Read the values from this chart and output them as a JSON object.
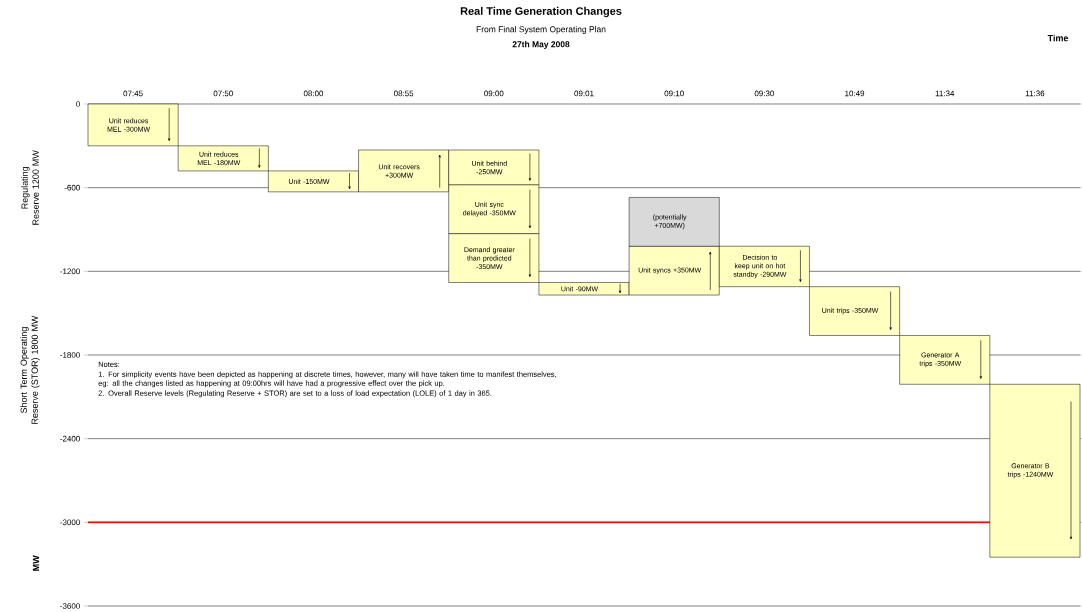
{
  "chart_data": {
    "type": "bar",
    "title": "Real Time Generation Changes",
    "subtitle": "From Final System Operating Plan",
    "ylabel": "MW",
    "categories": [
      "07:45",
      "07:50",
      "08:00",
      "08:55",
      "09:00",
      "09:01",
      "09:10",
      "09:30",
      "10:49",
      "11:34",
      "11:36"
    ],
    "color": "#ffffc0",
    "series": [
      {
        "values": [
          -300,
          -180,
          -150,
          300,
          -250,
          -90,
          350,
          -290,
          -350,
          -350,
          -1240
        ],
        "base": [
          0,
          -300,
          -480,
          -630,
          -330,
          -1280,
          -1370,
          -1020,
          -1310,
          -1660,
          -2010
        ],
        "value_labels": [
          "Unit reduces MEL -300MW",
          "Unit reduces MEL -180MW",
          "Unit -150MW",
          "Unit recovers +300MW",
          "Unit behind -250MW",
          "Unit -90MW",
          "Unit syncs +350MW",
          "Decision to keep unit on hot standby -290MW",
          "Unit trips -350MW",
          "Generator A trips -350MW",
          "Generator B trips -1240MW"
        ]
      },
      {
        "values": [
          null,
          null,
          null,
          null,
          -350,
          null,
          null,
          null,
          null,
          null,
          null
        ],
        "base": [
          null,
          null,
          null,
          null,
          -580,
          null,
          null,
          null,
          null,
          null,
          null
        ],
        "value_labels": [
          null,
          null,
          null,
          null,
          "Unit sync delayed -350MW",
          null,
          null,
          null,
          null,
          null,
          null
        ]
      },
      {
        "values": [
          null,
          null,
          null,
          null,
          -350,
          null,
          null,
          null,
          null,
          null,
          null
        ],
        "base": [
          null,
          null,
          null,
          null,
          -930,
          null,
          null,
          null,
          null,
          null,
          null
        ],
        "value_labels": [
          null,
          null,
          null,
          null,
          "Demand greater than predicted -350MW",
          null,
          null,
          null,
          null,
          null,
          null
        ]
      },
      {
        "color": "#d9d9d9",
        "values": [
          null,
          null,
          null,
          null,
          null,
          null,
          350,
          null,
          null,
          null,
          null
        ],
        "base": [
          null,
          null,
          null,
          null,
          null,
          null,
          -1020,
          null,
          null,
          null,
          null
        ],
        "value_labels": [
          null,
          null,
          null,
          null,
          null,
          null,
          null,
          null,
          null,
          null,
          null
        ]
      }
    ],
    "ylim": [
      -3600,
      0
    ],
    "yticks": [
      0,
      -600,
      -1200,
      -1800,
      -2400,
      -3000,
      -3600
    ],
    "grid": "y",
    "ref_lines": [
      {
        "axis": "y",
        "value": -3000,
        "color": "#ff0000"
      }
    ],
    "annotations": [
      "27th May 2008",
      "Time",
      "Regulating Reserve 1200 MW",
      "Short Term Operating Reserve (STOR) 1800 MW",
      "(potentially +700MW)",
      "Notes:",
      "1. For simplicity events have been depicted as happening at discrete times,  however, many will have taken time to manifest themselves, eg: all the changes listed as happening at 09:00hrs will have had a progressive effect over the pick up.",
      "2. Overall Reserve levels (Regulating Reserve + STOR) are set to a loss of load expectation (LOLE) of 1 day in 365."
    ]
  }
}
